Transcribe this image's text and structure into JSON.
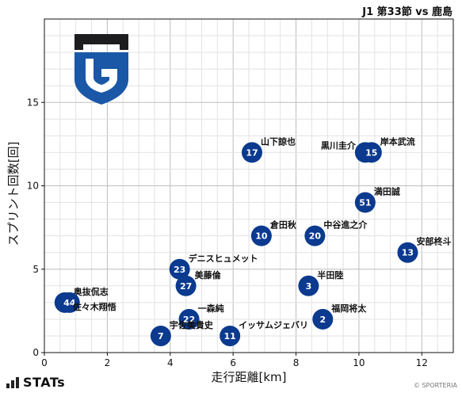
{
  "header": {
    "title": "J1 第33節 vs 鹿島"
  },
  "footer": {
    "brand": "STATs",
    "credit": "© SPORTERIA"
  },
  "colors": {
    "point": "#0b3a8f",
    "logo_blue": "#1a57a6",
    "logo_black": "#1d1d1f"
  },
  "chart_data": {
    "type": "scatter",
    "title": "J1 第33節 vs 鹿島",
    "xlabel": "走行距離[km]",
    "ylabel": "スプリント回数[回]",
    "xlim": [
      0,
      13
    ],
    "ylim": [
      0,
      20
    ],
    "xticks": [
      0,
      2,
      4,
      6,
      8,
      10,
      12
    ],
    "yticks": [
      0,
      5,
      10,
      15
    ],
    "grid": true,
    "points": [
      {
        "number": "17",
        "name": "山下諒也",
        "x": 6.6,
        "y": 12
      },
      {
        "number": "4",
        "name": "黒川圭介",
        "x": 10.2,
        "y": 12
      },
      {
        "number": "15",
        "name": "岸本武流",
        "x": 10.4,
        "y": 12
      },
      {
        "number": "51",
        "name": "満田誠",
        "x": 10.2,
        "y": 9
      },
      {
        "number": "10",
        "name": "倉田秋",
        "x": 6.9,
        "y": 7
      },
      {
        "number": "20",
        "name": "中谷進之介",
        "x": 8.6,
        "y": 7
      },
      {
        "number": "13",
        "name": "安部柊斗",
        "x": 11.55,
        "y": 6
      },
      {
        "number": "23",
        "name": "デニスヒュメット",
        "x": 4.3,
        "y": 5
      },
      {
        "number": "27",
        "name": "美藤倫",
        "x": 4.5,
        "y": 4
      },
      {
        "number": "3",
        "name": "半田陸",
        "x": 8.4,
        "y": 4
      },
      {
        "number": "6",
        "name": "奥抜侃志",
        "x": 0.65,
        "y": 3
      },
      {
        "number": "44",
        "name": "佐々木翔悟",
        "x": 0.8,
        "y": 3
      },
      {
        "number": "22",
        "name": "一森純",
        "x": 4.6,
        "y": 2
      },
      {
        "number": "2",
        "name": "福岡将太",
        "x": 8.85,
        "y": 2
      },
      {
        "number": "7",
        "name": "宇佐美貴史",
        "x": 3.7,
        "y": 1
      },
      {
        "number": "11",
        "name": "イッサムジェバリ",
        "x": 5.9,
        "y": 1
      }
    ]
  }
}
